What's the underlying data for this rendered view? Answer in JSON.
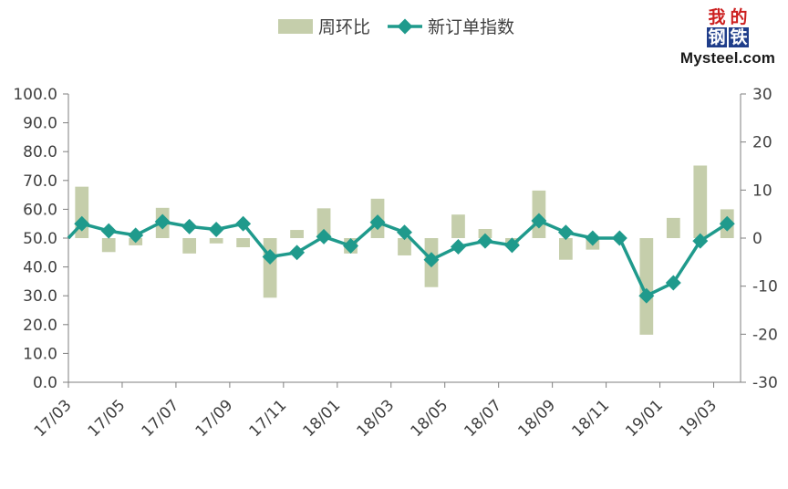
{
  "logo": {
    "chars": [
      "我",
      "的",
      "钢",
      "铁"
    ],
    "text": "Mysteel.com"
  },
  "legend": {
    "bar_label": "周环比",
    "line_label": "新订单指数"
  },
  "colors": {
    "bar": "#c5ceab",
    "line": "#1f9a8c",
    "axis": "#7f7f7f",
    "text": "#404040"
  },
  "chart_data": {
    "type": "bar+line",
    "categories": [
      "17/03",
      "17/04",
      "17/05",
      "17/06",
      "17/07",
      "17/08",
      "17/09",
      "17/10",
      "17/11",
      "17/12",
      "18/01",
      "18/02",
      "18/03",
      "18/04",
      "18/05",
      "18/06",
      "18/07",
      "18/08",
      "18/09",
      "18/10",
      "18/11",
      "18/12",
      "19/01",
      "19/02",
      "19/03"
    ],
    "x_tick_labels": [
      "17/03",
      "17/05",
      "17/07",
      "17/09",
      "17/11",
      "18/01",
      "18/03",
      "18/05",
      "18/07",
      "18/09",
      "18/11",
      "19/01",
      "19/03"
    ],
    "left_axis": {
      "ylim": [
        0,
        100
      ],
      "ticks": [
        "0.0",
        "10.0",
        "20.0",
        "30.0",
        "40.0",
        "50.0",
        "60.0",
        "70.0",
        "80.0",
        "90.0",
        "100.0"
      ]
    },
    "right_axis": {
      "ylim": [
        -30,
        30
      ],
      "ticks": [
        "-30",
        "-20",
        "-10",
        "0",
        "10",
        "20",
        "30"
      ]
    },
    "series": [
      {
        "name": "周环比",
        "type": "bar",
        "axis": "right",
        "values": [
          10.7,
          -2.9,
          -1.5,
          6.3,
          -3.2,
          -1.1,
          -1.9,
          -12.4,
          1.7,
          6.2,
          -3.2,
          8.2,
          -3.6,
          -10.2,
          4.9,
          1.9,
          -1.3,
          9.9,
          -4.5,
          -2.4,
          0.0,
          -20.1,
          4.2,
          15.1,
          6.0
        ]
      },
      {
        "name": "新订单指数",
        "type": "line",
        "axis": "left",
        "values": [
          55.0,
          52.5,
          51.0,
          55.7,
          54.0,
          53.0,
          55.0,
          43.5,
          45.0,
          50.5,
          47.3,
          55.5,
          52.0,
          42.5,
          47.0,
          49.0,
          47.5,
          56.0,
          52.0,
          50.0,
          50.0,
          30.0,
          34.5,
          49.0,
          55.0
        ]
      }
    ],
    "legend_position": "top-center"
  }
}
